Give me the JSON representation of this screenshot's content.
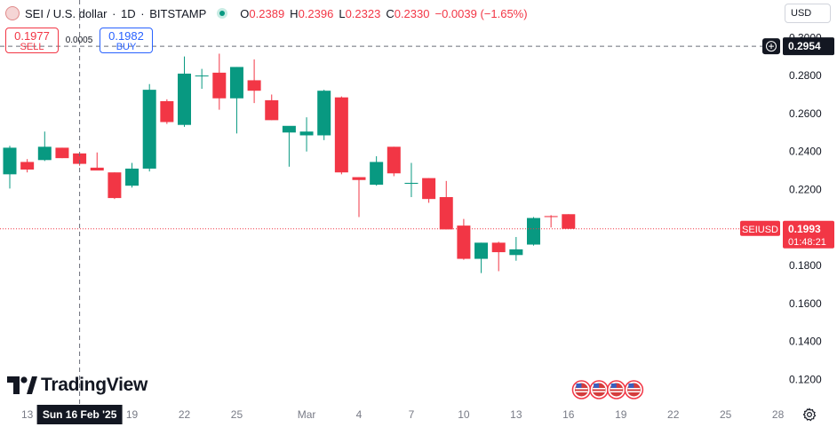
{
  "header": {
    "symbol": "SEI / U.S. dollar",
    "interval": "1D",
    "exchange": "BITSTAMP",
    "open_label": "O",
    "open": "0.2389",
    "high_label": "H",
    "high": "0.2396",
    "low_label": "L",
    "low": "0.2323",
    "close_label": "C",
    "close": "0.2330",
    "change": "−0.0039 (−1.65%)"
  },
  "trade": {
    "sell_price": "0.1977",
    "sell_label": "SELL",
    "spread": "0.0005",
    "buy_price": "0.1982",
    "buy_label": "BUY"
  },
  "currency": "USD",
  "brand": "TradingView",
  "crosshair": {
    "price": "0.2954",
    "date": "Sun 16 Feb '25"
  },
  "last_price": {
    "symbol": "SEIUSD",
    "price": "0.1993",
    "countdown": "01:48:21"
  },
  "colors": {
    "up": "#089981",
    "down": "#f23645",
    "grid_text": "#787b86"
  },
  "chart_data": {
    "type": "candlestick",
    "y_range": [
      0.116,
      0.302
    ],
    "y_ticks": [
      "0.1200",
      "0.1400",
      "0.1600",
      "0.1800",
      "0.2000",
      "0.2200",
      "0.2400",
      "0.2600",
      "0.2800",
      "0.3000"
    ],
    "x_ticks": [
      {
        "day": 13,
        "label": "13"
      },
      {
        "day": 19,
        "label": "19"
      },
      {
        "day": 22,
        "label": "22"
      },
      {
        "day": 25,
        "label": "25"
      },
      {
        "day": 29,
        "label": "Mar"
      },
      {
        "day": 32,
        "label": "4"
      },
      {
        "day": 35,
        "label": "7"
      },
      {
        "day": 38,
        "label": "10"
      },
      {
        "day": 41,
        "label": "13"
      },
      {
        "day": 44,
        "label": "16"
      },
      {
        "day": 47,
        "label": "19"
      },
      {
        "day": 50,
        "label": "22"
      },
      {
        "day": 53,
        "label": "25"
      },
      {
        "day": 56,
        "label": "28"
      }
    ],
    "candles": [
      {
        "day": 12,
        "o": 0.228,
        "h": 0.243,
        "l": 0.2205,
        "c": 0.242
      },
      {
        "day": 13,
        "o": 0.2345,
        "h": 0.236,
        "l": 0.229,
        "c": 0.2305
      },
      {
        "day": 14,
        "o": 0.2355,
        "h": 0.2505,
        "l": 0.235,
        "c": 0.2425
      },
      {
        "day": 15,
        "o": 0.242,
        "h": 0.242,
        "l": 0.2365,
        "c": 0.2365
      },
      {
        "day": 16,
        "o": 0.239,
        "h": 0.239,
        "l": 0.2325,
        "c": 0.2335
      },
      {
        "day": 17,
        "o": 0.2315,
        "h": 0.2395,
        "l": 0.2305,
        "c": 0.23
      },
      {
        "day": 18,
        "o": 0.229,
        "h": 0.229,
        "l": 0.215,
        "c": 0.2155
      },
      {
        "day": 19,
        "o": 0.222,
        "h": 0.234,
        "l": 0.221,
        "c": 0.231
      },
      {
        "day": 20,
        "o": 0.231,
        "h": 0.2755,
        "l": 0.2295,
        "c": 0.2725
      },
      {
        "day": 21,
        "o": 0.2665,
        "h": 0.2675,
        "l": 0.2545,
        "c": 0.2555
      },
      {
        "day": 22,
        "o": 0.254,
        "h": 0.29,
        "l": 0.253,
        "c": 0.281
      },
      {
        "day": 23,
        "o": 0.28,
        "h": 0.2835,
        "l": 0.273,
        "c": 0.28
      },
      {
        "day": 24,
        "o": 0.2815,
        "h": 0.2915,
        "l": 0.262,
        "c": 0.268
      },
      {
        "day": 25,
        "o": 0.268,
        "h": 0.2845,
        "l": 0.2495,
        "c": 0.2845
      },
      {
        "day": 26,
        "o": 0.2775,
        "h": 0.2885,
        "l": 0.2655,
        "c": 0.272
      },
      {
        "day": 27,
        "o": 0.267,
        "h": 0.27,
        "l": 0.2565,
        "c": 0.2565
      },
      {
        "day": 28,
        "o": 0.25,
        "h": 0.253,
        "l": 0.232,
        "c": 0.2535
      },
      {
        "day": 29,
        "o": 0.2485,
        "h": 0.258,
        "l": 0.24,
        "c": 0.2505
      },
      {
        "day": 30,
        "o": 0.2485,
        "h": 0.2725,
        "l": 0.246,
        "c": 0.272
      },
      {
        "day": 31,
        "o": 0.2685,
        "h": 0.269,
        "l": 0.228,
        "c": 0.229
      },
      {
        "day": 32,
        "o": 0.2265,
        "h": 0.2265,
        "l": 0.2055,
        "c": 0.225
      },
      {
        "day": 33,
        "o": 0.2225,
        "h": 0.2375,
        "l": 0.222,
        "c": 0.2345
      },
      {
        "day": 34,
        "o": 0.2425,
        "h": 0.2425,
        "l": 0.227,
        "c": 0.2285
      },
      {
        "day": 35,
        "o": 0.223,
        "h": 0.234,
        "l": 0.216,
        "c": 0.2235
      },
      {
        "day": 36,
        "o": 0.226,
        "h": 0.226,
        "l": 0.213,
        "c": 0.215
      },
      {
        "day": 37,
        "o": 0.216,
        "h": 0.2245,
        "l": 0.199,
        "c": 0.199
      },
      {
        "day": 38,
        "o": 0.201,
        "h": 0.2045,
        "l": 0.183,
        "c": 0.1835
      },
      {
        "day": 39,
        "o": 0.1835,
        "h": 0.192,
        "l": 0.176,
        "c": 0.192
      },
      {
        "day": 40,
        "o": 0.192,
        "h": 0.1925,
        "l": 0.177,
        "c": 0.187
      },
      {
        "day": 41,
        "o": 0.1855,
        "h": 0.195,
        "l": 0.1825,
        "c": 0.1885
      },
      {
        "day": 42,
        "o": 0.191,
        "h": 0.2055,
        "l": 0.1905,
        "c": 0.205
      },
      {
        "day": 43,
        "o": 0.206,
        "h": 0.2065,
        "l": 0.2,
        "c": 0.2055
      },
      {
        "day": 44,
        "o": 0.207,
        "h": 0.207,
        "l": 0.1993,
        "c": 0.1993
      }
    ],
    "events_days": [
      45,
      46,
      47,
      48
    ]
  }
}
